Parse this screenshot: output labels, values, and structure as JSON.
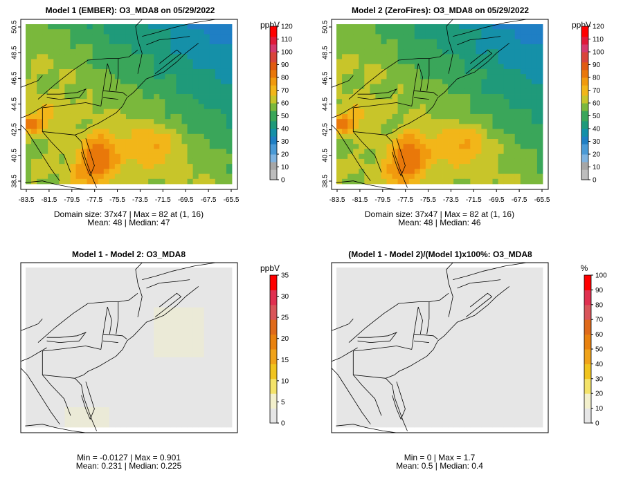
{
  "panels": [
    {
      "id": "model1",
      "title": "Model 1 (EMBER): O3_MDA8 on 05/29/2022",
      "kind": "ozone",
      "show_axes": true,
      "unit": "ppbV",
      "colorbar_ticks": [
        "0",
        "10",
        "20",
        "30",
        "40",
        "50",
        "60",
        "70",
        "80",
        "90",
        "100",
        "110",
        "120"
      ],
      "stats": [
        "Domain size: 37x47 | Max = 82 at (1, 16)",
        "Mean: 48 |  Median: 47"
      ],
      "variant": 0
    },
    {
      "id": "model2",
      "title": "Model 2 (ZeroFires): O3_MDA8 on 05/29/2022",
      "kind": "ozone",
      "show_axes": true,
      "unit": "ppbV",
      "colorbar_ticks": [
        "0",
        "10",
        "20",
        "30",
        "40",
        "50",
        "60",
        "70",
        "80",
        "90",
        "100",
        "110",
        "120"
      ],
      "stats": [
        "Domain size: 37x47 | Max = 82 at (1, 16)",
        "Mean: 48 |  Median: 46"
      ],
      "variant": 1
    },
    {
      "id": "diff",
      "title": "Model 1 - Model 2: O3_MDA8",
      "kind": "diff",
      "show_axes": false,
      "unit": "ppbV",
      "colorbar_ticks": [
        "0",
        "5",
        "10",
        "15",
        "20",
        "25",
        "30",
        "35"
      ],
      "stats": [
        "Min = -0.0127 | Max = 0.901",
        "Mean: 0.231 |  Median: 0.225"
      ]
    },
    {
      "id": "pct",
      "title": "(Model 1 - Model 2)/(Model 1)x100%: O3_MDA8",
      "kind": "pct",
      "show_axes": false,
      "unit": "%",
      "colorbar_ticks": [
        "0",
        "10",
        "20",
        "30",
        "40",
        "50",
        "60",
        "70",
        "80",
        "90",
        "100"
      ],
      "stats": [
        "Min = 0 | Max = 1.7",
        "Mean: 0.5 |  Median: 0.4"
      ]
    }
  ],
  "axes": {
    "x_ticks": [
      "-83.5",
      "-81.5",
      "-79.5",
      "-77.5",
      "-75.5",
      "-73.5",
      "-71.5",
      "-69.5",
      "-67.5",
      "-65.5"
    ],
    "y_ticks": [
      "38.5",
      "40.5",
      "42.5",
      "44.5",
      "46.5",
      "48.5",
      "50.5"
    ]
  },
  "colors": {
    "ozone_scale": [
      "#bdbdbd",
      "#a6a6a6",
      "#7fb3e0",
      "#4a9ad6",
      "#1f7fc4",
      "#1590a8",
      "#1f9a7a",
      "#3aa65a",
      "#7ab83c",
      "#c8c52a",
      "#f2b619",
      "#f19a0e",
      "#e9780a",
      "#e05a10",
      "#d8443a",
      "#d63a6e",
      "#e01a3a",
      "#ff0000"
    ],
    "diff_scale": [
      "#e6e6e6",
      "#f3f0cc",
      "#f4e36a",
      "#f1c41f",
      "#f0a31a",
      "#e9820f",
      "#df6a1a",
      "#d9555a",
      "#e03050",
      "#ff0000"
    ]
  }
}
